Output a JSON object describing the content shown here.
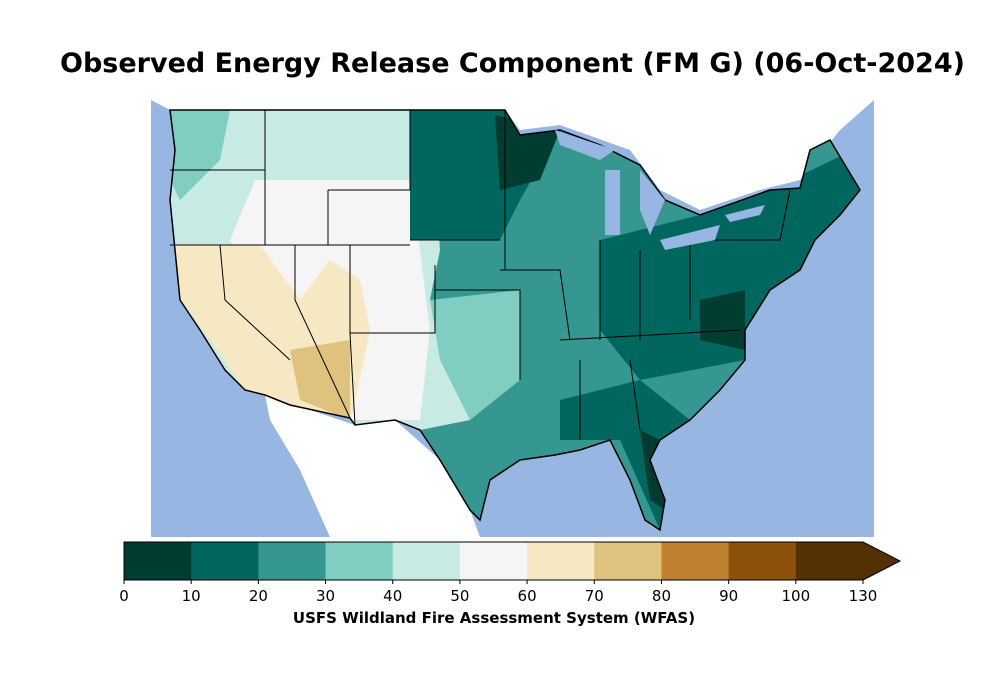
{
  "title": "Observed Energy Release Component (FM G) (06-Oct-2024)",
  "colorbar": {
    "label": "USFS Wildland Fire Assessment System (WFAS)",
    "ticks": [
      "0",
      "10",
      "20",
      "30",
      "40",
      "50",
      "60",
      "70",
      "80",
      "90",
      "100",
      "130"
    ],
    "colors": [
      "#003c30",
      "#01665e",
      "#35978f",
      "#80cdc1",
      "#c7eae5",
      "#f5f5f5",
      "#f6e8c3",
      "#dfc27d",
      "#bf812d",
      "#8c510a",
      "#543005"
    ],
    "extend": "max"
  },
  "map": {
    "ocean_color": "#97b6e1",
    "land_color": "#ffffff"
  }
}
